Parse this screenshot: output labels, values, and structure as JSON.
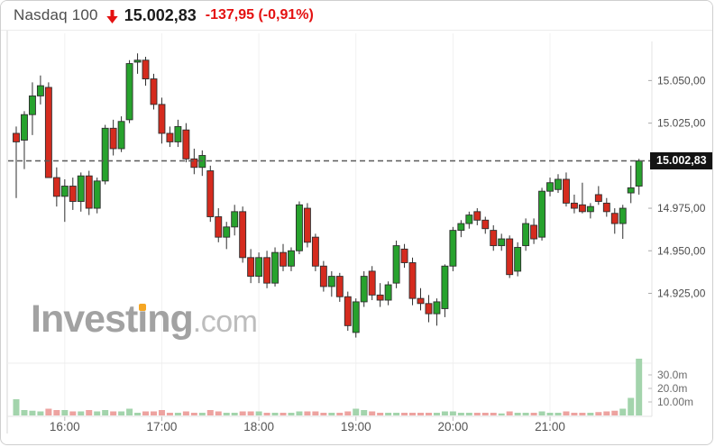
{
  "header": {
    "symbol": "Nasdaq 100",
    "last_price": "15.002,83",
    "change": "-137,95 (-0,91%)",
    "arrow_icon": "down-arrow",
    "arrow_color": "#e41111"
  },
  "price_tag": {
    "text": "15.002,83",
    "bg": "#141414",
    "fg": "#ffffff"
  },
  "watermark": {
    "pre": "Invest",
    "dotless_i": "ı",
    "post": "ng",
    "suffix": ".com",
    "dot_color": "#f5a623"
  },
  "colors": {
    "candle_up": "#27a22d",
    "candle_down": "#d52b1e",
    "candle_outline": "#2e2e2e",
    "volume_up": "#a3d4ac",
    "volume_down": "#eda3a0",
    "dashed_line": "#5a5a5a",
    "axis_text": "#4c4c4c",
    "time_text": "#555555",
    "volume_text": "#6b6b6b",
    "grid": "#f1f1f1",
    "frame": "#e3e3e3"
  },
  "chart_data": {
    "type": "candlestick",
    "title": "Nasdaq 100 intraday 5-minute candles with volume",
    "last_price": 15002.83,
    "price_axis": {
      "side": "right",
      "ylim": [
        14852.7,
        15073
      ],
      "labels": [
        {
          "text": "15.050,00",
          "value": 15050
        },
        {
          "text": "15.025,00",
          "value": 15025
        },
        {
          "text": "14.975,00",
          "value": 14975
        },
        {
          "text": "14.950,00",
          "value": 14950
        },
        {
          "text": "14.925,00",
          "value": 14925
        }
      ]
    },
    "volume_axis": {
      "labels": [
        {
          "text": "30.0m",
          "value": 30
        },
        {
          "text": "20.0m",
          "value": 20
        },
        {
          "text": "10.00m",
          "value": 10
        }
      ],
      "unit": "millions"
    },
    "time_axis": {
      "labels": [
        {
          "text": "16:00",
          "index": 6
        },
        {
          "text": "17:00",
          "index": 18
        },
        {
          "text": "18:00",
          "index": 30
        },
        {
          "text": "19:00",
          "index": 42
        },
        {
          "text": "20:00",
          "index": 54
        },
        {
          "text": "21:00",
          "index": 66
        }
      ]
    },
    "grid": "vertical-hour-lines",
    "candles_format": [
      "time",
      "open",
      "high",
      "low",
      "close",
      "volume_m",
      "vol_color_override"
    ],
    "candles": [
      [
        "15:30",
        15019,
        15023,
        14981,
        15014,
        12,
        "g"
      ],
      [
        "15:35",
        15015,
        15032,
        14998,
        15030,
        4
      ],
      [
        "15:40",
        15030,
        15049,
        15018,
        15041,
        3.5
      ],
      [
        "15:45",
        15041,
        15053,
        15036,
        15047,
        3
      ],
      [
        "15:50",
        15046,
        15049,
        14994,
        14993,
        5
      ],
      [
        "15:55",
        14993,
        14999,
        14976,
        14982,
        4
      ],
      [
        "16:00",
        14982,
        14992,
        14967,
        14988,
        4
      ],
      [
        "16:05",
        14988,
        14993,
        14974,
        14979,
        3
      ],
      [
        "16:10",
        14979,
        14996,
        14973,
        14994,
        3
      ],
      [
        "16:15",
        14994,
        14997,
        14971,
        14975,
        4
      ],
      [
        "16:20",
        14975,
        14993,
        14972,
        14991,
        3
      ],
      [
        "16:25",
        14991,
        15024,
        14989,
        15022,
        4
      ],
      [
        "16:30",
        15022,
        15027,
        15006,
        15010,
        3
      ],
      [
        "16:35",
        15010,
        15029,
        15008,
        15026,
        3
      ],
      [
        "16:40",
        15027,
        15062,
        15025,
        15060,
        5
      ],
      [
        "16:45",
        15061,
        15066,
        15054,
        15062,
        2
      ],
      [
        "16:50",
        15062,
        15064,
        15047,
        15051,
        3
      ],
      [
        "16:55",
        15051,
        15054,
        15033,
        15036,
        3
      ],
      [
        "17:00",
        15036,
        15040,
        15013,
        15019,
        4
      ],
      [
        "17:05",
        15019,
        15023,
        15011,
        15014,
        2
      ],
      [
        "17:10",
        15014,
        15027,
        15011,
        15023,
        2
      ],
      [
        "17:15",
        15021,
        15025,
        15002,
        15004,
        3
      ],
      [
        "17:20",
        15004,
        15010,
        14995,
        14999,
        2
      ],
      [
        "17:25",
        14999,
        15009,
        14994,
        15006,
        2
      ],
      [
        "17:30",
        14997,
        15000,
        14967,
        14970,
        4
      ],
      [
        "17:35",
        14970,
        14975,
        14955,
        14958,
        3
      ],
      [
        "17:40",
        14958,
        14967,
        14951,
        14964,
        2
      ],
      [
        "17:45",
        14964,
        14977,
        14959,
        14973,
        2
      ],
      [
        "17:50",
        14973,
        14976,
        14943,
        14946,
        3
      ],
      [
        "17:55",
        14946,
        14951,
        14931,
        14935,
        3
      ],
      [
        "18:00",
        14935,
        14949,
        14931,
        14946,
        3
      ],
      [
        "18:05",
        14946,
        14950,
        14928,
        14931,
        2
      ],
      [
        "18:10",
        14931,
        14952,
        14929,
        14949,
        2
      ],
      [
        "18:15",
        14949,
        14954,
        14938,
        14941,
        2
      ],
      [
        "18:20",
        14941,
        14952,
        14938,
        14950,
        2
      ],
      [
        "18:25",
        14950,
        14979,
        14948,
        14977,
        3
      ],
      [
        "18:30",
        14975,
        14978,
        14952,
        14955,
        3
      ],
      [
        "18:35",
        14958,
        14960,
        14938,
        14941,
        3
      ],
      [
        "18:40",
        14941,
        14944,
        14926,
        14929,
        2
      ],
      [
        "18:45",
        14929,
        14938,
        14923,
        14935,
        2
      ],
      [
        "18:50",
        14935,
        14937,
        14920,
        14923,
        2
      ],
      [
        "18:55",
        14923,
        14926,
        14903,
        14906,
        3
      ],
      [
        "19:00",
        14902,
        14922,
        14899,
        14920,
        5
      ],
      [
        "19:05",
        14920,
        14938,
        14917,
        14935,
        4
      ],
      [
        "19:10",
        14938,
        14941,
        14921,
        14924,
        3
      ],
      [
        "19:15",
        14924,
        14931,
        14917,
        14921,
        2
      ],
      [
        "19:20",
        14921,
        14932,
        14918,
        14930,
        2
      ],
      [
        "19:25",
        14931,
        14956,
        14928,
        14953,
        2
      ],
      [
        "19:30",
        14951,
        14954,
        14940,
        14943,
        2
      ],
      [
        "19:35",
        14943,
        14946,
        14918,
        14922,
        2
      ],
      [
        "19:40",
        14922,
        14928,
        14915,
        14919,
        2
      ],
      [
        "19:45",
        14919,
        14924,
        14908,
        14913,
        2
      ],
      [
        "19:50",
        14913,
        14922,
        14906,
        14920,
        2
      ],
      [
        "19:55",
        14916,
        14942,
        14911,
        14941,
        3
      ],
      [
        "20:00",
        14941,
        14964,
        14938,
        14962,
        3
      ],
      [
        "20:05",
        14962,
        14968,
        14958,
        14966,
        2
      ],
      [
        "20:10",
        14966,
        14973,
        14963,
        14971,
        2
      ],
      [
        "20:15",
        14973,
        14975,
        14965,
        14968,
        2
      ],
      [
        "20:20",
        14968,
        14970,
        14960,
        14963,
        2
      ],
      [
        "20:25",
        14962,
        14965,
        14950,
        14953,
        2
      ],
      [
        "20:30",
        14953,
        14960,
        14950,
        14957,
        1.5
      ],
      [
        "20:35",
        14957,
        14959,
        14934,
        14936,
        3
      ],
      [
        "20:40",
        14938,
        14955,
        14935,
        14952,
        2
      ],
      [
        "20:45",
        14953,
        14969,
        14950,
        14966,
        2
      ],
      [
        "20:50",
        14965,
        14969,
        14954,
        14957,
        2
      ],
      [
        "20:55",
        14958,
        14987,
        14956,
        14985,
        3
      ],
      [
        "21:00",
        14985,
        14993,
        14982,
        14990,
        2
      ],
      [
        "21:05",
        14986,
        14995,
        14984,
        14992,
        2
      ],
      [
        "21:10",
        14992,
        14996,
        14976,
        14978,
        3
      ],
      [
        "21:15",
        14978,
        14983,
        14972,
        14975,
        2
      ],
      [
        "21:20",
        14977,
        14990,
        14972,
        14973,
        2
      ],
      [
        "21:25",
        14973,
        14978,
        14969,
        14976,
        2
      ],
      [
        "21:30",
        14983,
        14988,
        14977,
        14979,
        2.5
      ],
      [
        "21:35",
        14978,
        14981,
        14970,
        14973,
        3
      ],
      [
        "21:40",
        14972,
        14975,
        14960,
        14966,
        3.5
      ],
      [
        "21:45",
        14966,
        14977,
        14957,
        14975,
        5
      ],
      [
        "21:50",
        14984,
        15000,
        14978,
        14987,
        13
      ],
      [
        "21:55",
        14988,
        15004,
        14983,
        15002.83,
        42
      ]
    ]
  }
}
